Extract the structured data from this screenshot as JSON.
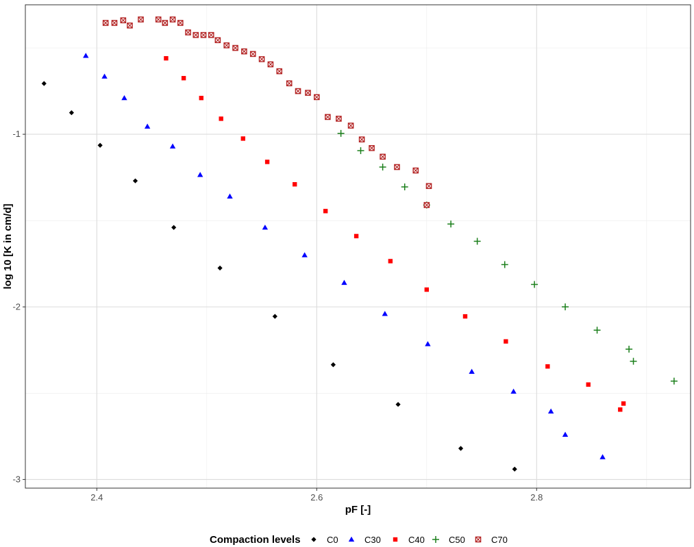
{
  "chart_data": {
    "type": "scatter",
    "xlabel": "pF [-]",
    "ylabel": "log 10 [K in cm/d]",
    "xlim": [
      2.335,
      2.94
    ],
    "ylim": [
      -3.05,
      -0.25
    ],
    "x_ticks": [
      2.4,
      2.6,
      2.8
    ],
    "x_tick_labels": [
      "2.4",
      "2.6",
      "2.8"
    ],
    "y_ticks": [
      -1,
      -2,
      -3
    ],
    "y_tick_labels": [
      "-1",
      "-2",
      "-3"
    ],
    "x_minor": [
      2.5,
      2.7,
      2.9
    ],
    "y_minor": [
      -0.5,
      -1.5,
      -2.5
    ],
    "grid": true,
    "legend_title": "Compaction levels",
    "legend_position": "bottom",
    "series": [
      {
        "name": "C0",
        "color": "#000000",
        "marker": "diamond",
        "points": [
          [
            2.352,
            -0.706
          ],
          [
            2.377,
            -0.875
          ],
          [
            2.403,
            -1.064
          ],
          [
            2.435,
            -1.27
          ],
          [
            2.47,
            -1.54
          ],
          [
            2.512,
            -1.775
          ],
          [
            2.562,
            -2.055
          ],
          [
            2.615,
            -2.335
          ],
          [
            2.674,
            -2.565
          ],
          [
            2.731,
            -2.82
          ],
          [
            2.78,
            -2.94
          ]
        ]
      },
      {
        "name": "C30",
        "color": "#0000ff",
        "marker": "triangle",
        "points": [
          [
            2.39,
            -0.545
          ],
          [
            2.407,
            -0.665
          ],
          [
            2.425,
            -0.79
          ],
          [
            2.446,
            -0.955
          ],
          [
            2.469,
            -1.07
          ],
          [
            2.494,
            -1.235
          ],
          [
            2.521,
            -1.36
          ],
          [
            2.553,
            -1.54
          ],
          [
            2.589,
            -1.7
          ],
          [
            2.625,
            -1.86
          ],
          [
            2.662,
            -2.04
          ],
          [
            2.701,
            -2.215
          ],
          [
            2.741,
            -2.375
          ],
          [
            2.779,
            -2.49
          ],
          [
            2.813,
            -2.605
          ],
          [
            2.826,
            -2.74
          ],
          [
            2.86,
            -2.87
          ]
        ]
      },
      {
        "name": "C40",
        "color": "#ff0000",
        "marker": "square",
        "points": [
          [
            2.463,
            -0.56
          ],
          [
            2.479,
            -0.675
          ],
          [
            2.495,
            -0.79
          ],
          [
            2.513,
            -0.91
          ],
          [
            2.533,
            -1.025
          ],
          [
            2.555,
            -1.16
          ],
          [
            2.58,
            -1.29
          ],
          [
            2.608,
            -1.445
          ],
          [
            2.636,
            -1.59
          ],
          [
            2.667,
            -1.735
          ],
          [
            2.7,
            -1.9
          ],
          [
            2.735,
            -2.055
          ],
          [
            2.772,
            -2.2
          ],
          [
            2.81,
            -2.345
          ],
          [
            2.847,
            -2.45
          ],
          [
            2.879,
            -2.56
          ],
          [
            2.876,
            -2.595
          ]
        ]
      },
      {
        "name": "C50",
        "color": "#1b7f1b",
        "marker": "plus",
        "points": [
          [
            2.622,
            -0.995
          ],
          [
            2.64,
            -1.095
          ],
          [
            2.66,
            -1.19
          ],
          [
            2.68,
            -1.305
          ],
          [
            2.7,
            -1.41
          ],
          [
            2.722,
            -1.52
          ],
          [
            2.746,
            -1.62
          ],
          [
            2.771,
            -1.755
          ],
          [
            2.798,
            -1.87
          ],
          [
            2.826,
            -2.0
          ],
          [
            2.855,
            -2.135
          ],
          [
            2.884,
            -2.245
          ],
          [
            2.888,
            -2.315
          ],
          [
            2.925,
            -2.43
          ]
        ]
      },
      {
        "name": "C70",
        "color": "#b22222",
        "marker": "square-x",
        "points": [
          [
            2.408,
            -0.355
          ],
          [
            2.416,
            -0.355
          ],
          [
            2.424,
            -0.34
          ],
          [
            2.43,
            -0.37
          ],
          [
            2.44,
            -0.335
          ],
          [
            2.456,
            -0.335
          ],
          [
            2.462,
            -0.355
          ],
          [
            2.469,
            -0.335
          ],
          [
            2.476,
            -0.355
          ],
          [
            2.483,
            -0.41
          ],
          [
            2.49,
            -0.425
          ],
          [
            2.497,
            -0.425
          ],
          [
            2.504,
            -0.425
          ],
          [
            2.51,
            -0.455
          ],
          [
            2.518,
            -0.485
          ],
          [
            2.526,
            -0.5
          ],
          [
            2.534,
            -0.52
          ],
          [
            2.542,
            -0.535
          ],
          [
            2.55,
            -0.565
          ],
          [
            2.558,
            -0.595
          ],
          [
            2.566,
            -0.635
          ],
          [
            2.575,
            -0.705
          ],
          [
            2.583,
            -0.75
          ],
          [
            2.592,
            -0.76
          ],
          [
            2.6,
            -0.785
          ],
          [
            2.61,
            -0.9
          ],
          [
            2.62,
            -0.91
          ],
          [
            2.631,
            -0.95
          ],
          [
            2.641,
            -1.03
          ],
          [
            2.65,
            -1.08
          ],
          [
            2.66,
            -1.13
          ],
          [
            2.673,
            -1.19
          ],
          [
            2.69,
            -1.21
          ],
          [
            2.702,
            -1.3
          ],
          [
            2.7,
            -1.41
          ]
        ]
      }
    ]
  }
}
